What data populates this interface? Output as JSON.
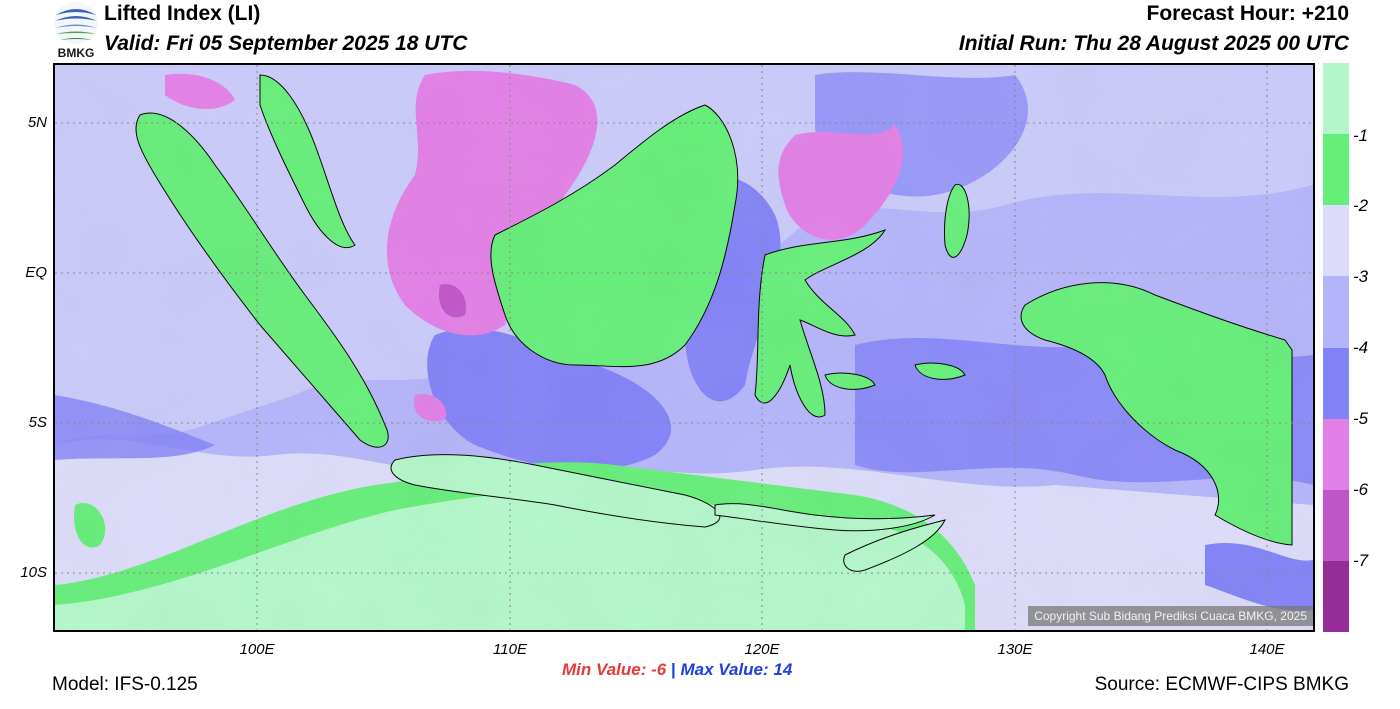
{
  "header": {
    "logo_text": "BMKG",
    "title": "Lifted Index (LI)",
    "valid": "Valid: Fri 05 September 2025 18 UTC",
    "forecast_hour": "Forecast Hour: +210",
    "initial_run": "Initial Run: Thu 28 August 2025 00 UTC"
  },
  "map": {
    "lat_labels": [
      "5N",
      "EQ",
      "5S",
      "10S"
    ],
    "lon_labels": [
      "100E",
      "110E",
      "120E",
      "130E",
      "140E"
    ],
    "copyright": "Copyright Sub Bidang Prediksi Cuaca BMKG, 2025"
  },
  "colorbar": {
    "labels": [
      "-1",
      "-2",
      "-3",
      "-4",
      "-5",
      "-6",
      "-7"
    ],
    "colors": [
      "#b3f7c9",
      "#66ee7a",
      "#dcdcfa",
      "#b4b4fa",
      "#8282f7",
      "#e27fe6",
      "#c055c9",
      "#952b97"
    ]
  },
  "stats": {
    "min_label": "Min Value:",
    "min_value": "-6",
    "separator": "|",
    "max_label": "Max Value:",
    "max_value": "14",
    "min_color": "#e43a3a",
    "max_color": "#1f3fe0"
  },
  "footer": {
    "model": "Model: IFS-0.125",
    "source": "Source: ECMWF-CIPS BMKG"
  }
}
